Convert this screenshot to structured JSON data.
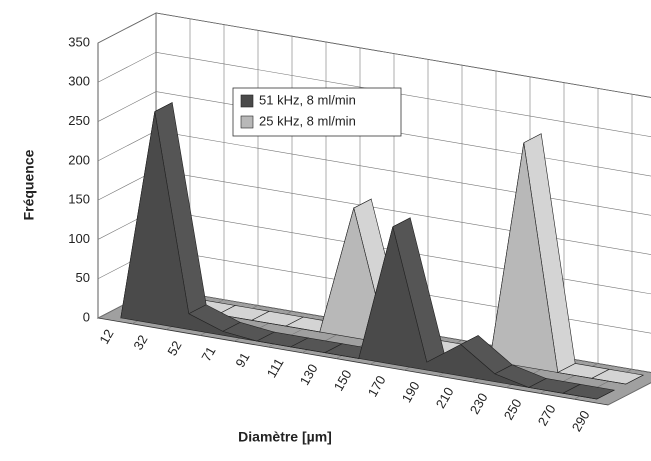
{
  "chart_data": {
    "type": "area3d",
    "x_label": "Diamètre [µm]",
    "y_label": "Fréquence",
    "categories": [
      "12",
      "32",
      "52",
      "71",
      "91",
      "111",
      "130",
      "150",
      "170",
      "190",
      "210",
      "230",
      "250",
      "270",
      "290"
    ],
    "series": [
      {
        "name": "51 kHz, 8 ml/min",
        "color": "#4a4a4a",
        "values": [
          0,
          270,
          20,
          5,
          0,
          0,
          0,
          0,
          175,
          10,
          40,
          10,
          0,
          0,
          0
        ]
      },
      {
        "name": "25 kHz, 8 ml/min",
        "color": "#b8b8b8",
        "values": [
          0,
          0,
          0,
          0,
          0,
          0,
          165,
          0,
          0,
          0,
          0,
          285,
          0,
          0,
          0
        ]
      }
    ],
    "ylim": [
      0,
      350
    ],
    "yticks": [
      0,
      50,
      100,
      150,
      200,
      250,
      300,
      350
    ],
    "grid": true
  }
}
